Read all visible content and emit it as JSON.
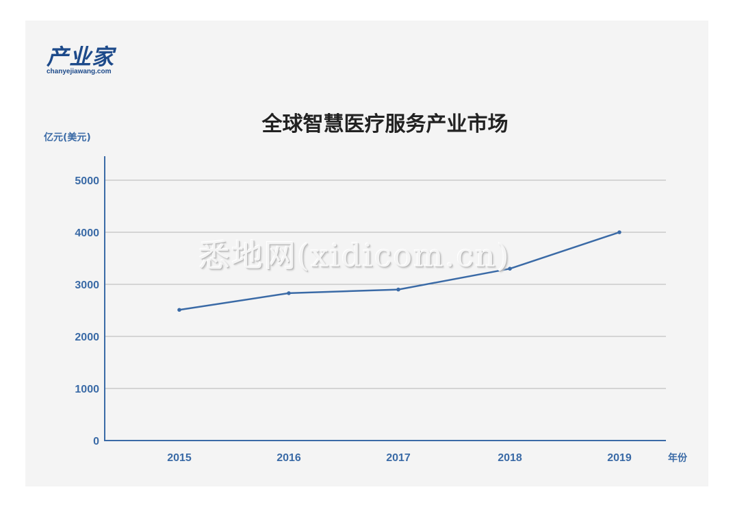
{
  "logo": {
    "main": "产业家",
    "sub": "chanyejiawang.com"
  },
  "watermark": "悉地网(xidicom.cn)",
  "colors": {
    "line": "#3a6aa6",
    "axis": "#3a6aa6",
    "grid": "#b5b5b5",
    "tick": "#3a6aa6"
  },
  "chart_data": {
    "type": "line",
    "title": "全球智慧医疗服务产业市场",
    "ylabel": "亿元(美元)",
    "xlabel": "年份",
    "categories": [
      "2015",
      "2016",
      "2017",
      "2018",
      "2019"
    ],
    "values": [
      2510,
      2830,
      2900,
      3300,
      4000
    ],
    "yticks": [
      0,
      1000,
      2000,
      3000,
      4000,
      5000
    ],
    "ylim": [
      0,
      5000
    ],
    "grid": true
  }
}
